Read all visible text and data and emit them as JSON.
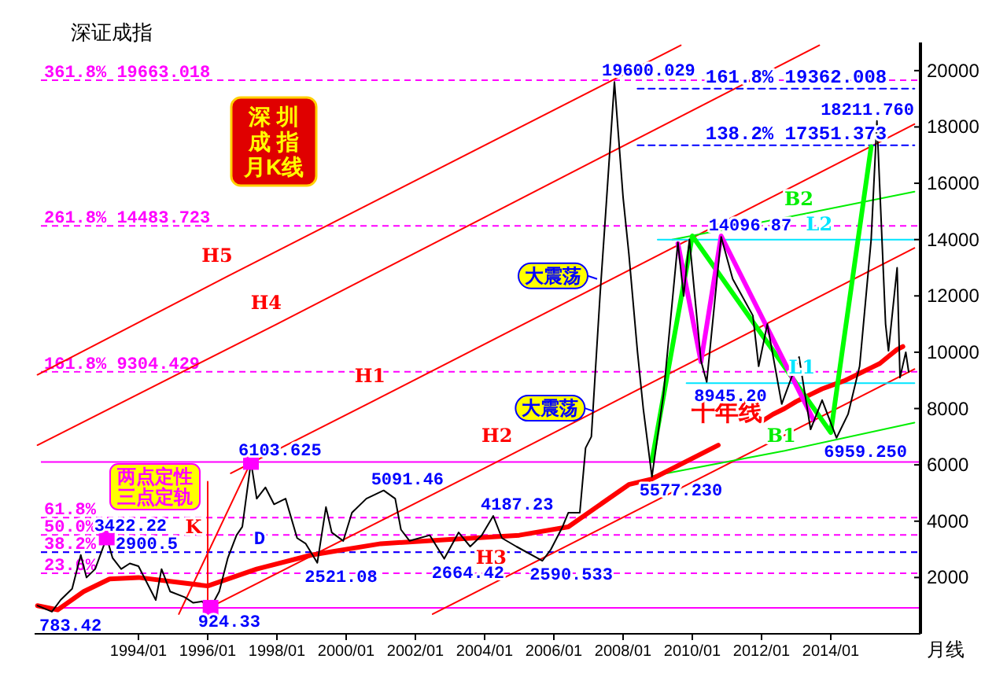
{
  "chart_data": {
    "type": "line",
    "title": "深证成指",
    "subtitle": "深圳成指月K线",
    "xlabel": "月线",
    "xlim": [
      "1991-01",
      "2016-07"
    ],
    "ylim": [
      0,
      21000
    ],
    "xticks": [
      {
        "value": "1994-01",
        "label": "1994/01"
      },
      {
        "value": "1996-01",
        "label": "1996/01"
      },
      {
        "value": "1998-01",
        "label": "1998/01"
      },
      {
        "value": "2000-01",
        "label": "2000/01"
      },
      {
        "value": "2002-01",
        "label": "2002/01"
      },
      {
        "value": "2004-01",
        "label": "2004/01"
      },
      {
        "value": "2006-01",
        "label": "2006/01"
      },
      {
        "value": "2008-01",
        "label": "2008/01"
      },
      {
        "value": "2010-01",
        "label": "2010/01"
      },
      {
        "value": "2012-01",
        "label": "2012/01"
      },
      {
        "value": "2014-01",
        "label": "2014/01"
      }
    ],
    "yticks": [
      2000,
      4000,
      6000,
      8000,
      10000,
      12000,
      14000,
      16000,
      18000,
      20000
    ],
    "ref_lines": [
      {
        "axis": "y",
        "value": 19663.018,
        "label": "361.8%  19663.018",
        "color": "#ff00ff",
        "line_style": "dashed"
      },
      {
        "axis": "y",
        "value": 14483.723,
        "label": "261.8%  14483.723",
        "color": "#ff00ff",
        "line_style": "dashed"
      },
      {
        "axis": "y",
        "value": 9304.429,
        "label": "161.8%  9304.429",
        "color": "#ff00ff",
        "line_style": "dashed"
      },
      {
        "axis": "y",
        "value": 6103.625,
        "color": "#ff00ff",
        "line_style": "solid"
      },
      {
        "axis": "y",
        "value": 4125,
        "color": "#ff00ff",
        "line_style": "dashed"
      },
      {
        "axis": "y",
        "value": 3514,
        "color": "#ff00ff",
        "line_style": "dashed"
      },
      {
        "axis": "y",
        "value": 2903,
        "color": "#ff00ff",
        "line_style": "dashed"
      },
      {
        "axis": "y",
        "value": 2900.5,
        "label": "2900.5",
        "color": "#0000ff",
        "line_style": "dashed"
      },
      {
        "axis": "y",
        "value": 2147,
        "color": "#ff00ff",
        "line_style": "dashed"
      },
      {
        "axis": "y",
        "value": 924.33,
        "color": "#ff00ff",
        "line_style": "solid"
      }
    ],
    "series": [
      {
        "type": "line",
        "name": "H5",
        "color": "#ff0000",
        "x": [
          "1991-02",
          "1996-08",
          "2009-09"
        ],
        "values": [
          9200,
          12700,
          20900
        ]
      },
      {
        "type": "line",
        "name": "H4",
        "color": "#ff0000",
        "x": [
          "1991-02",
          "1998-01",
          "2013-09"
        ],
        "values": [
          6700,
          11000,
          20900
        ]
      },
      {
        "type": "line",
        "name": "H1",
        "color": "#ff0000",
        "x": [
          "1996-09",
          "2001-01",
          "2016-06"
        ],
        "values": [
          5700,
          8400,
          18100
        ]
      },
      {
        "type": "line",
        "name": "H2",
        "color": "#ff0000",
        "x": [
          "1996-01",
          "2004-09",
          "2016-06"
        ],
        "values": [
          900,
          6300,
          13700
        ]
      },
      {
        "type": "line",
        "name": "H3",
        "color": "#ff0000",
        "x": [
          "2002-07",
          "2004-07",
          "2016-06"
        ],
        "values": [
          700,
          1950,
          9400
        ]
      },
      {
        "type": "line",
        "color": "#ff0000",
        "x": [
          "1995-03",
          "1997-04"
        ],
        "values": [
          700,
          6103.625
        ]
      },
      {
        "type": "line",
        "name": "K",
        "color": "#ff0000",
        "x": [
          "1996-01",
          "1996-01",
          "1996-01"
        ],
        "values": [
          1000,
          3800,
          5400
        ]
      },
      {
        "type": "line",
        "name": "B1",
        "color": "#00ee00",
        "x": [
          "2008-11",
          "2012-09",
          "2016-06"
        ],
        "values": [
          5600,
          6500,
          7500
        ]
      },
      {
        "type": "line",
        "name": "B2",
        "color": "#00ee00",
        "x": [
          "2009-06",
          "2013-03",
          "2016-06"
        ],
        "values": [
          14000,
          14900,
          15700
        ]
      },
      {
        "type": "line",
        "name": "L2",
        "color": "#00e5ff",
        "x": [
          "2009-01",
          "2013-09",
          "2016-06"
        ],
        "values": [
          14000,
          14000,
          14000
        ]
      },
      {
        "type": "line",
        "name": "L1",
        "color": "#00e5ff",
        "x": [
          "2009-11",
          "2013-03",
          "2016-06"
        ],
        "values": [
          8900,
          8900,
          8900
        ]
      },
      {
        "name": "161.8%  19362.008",
        "color": "#0000ff",
        "line_style": "dashed",
        "x": [
          "2008-06",
          "2013-01",
          "2016-06"
        ],
        "values": [
          19362.008,
          19362.008,
          19362.008
        ]
      },
      {
        "name": "138.2%  17351.373",
        "color": "#0000ff",
        "line_style": "dashed",
        "x": [
          "2008-06",
          "2013-01",
          "2016-06"
        ],
        "values": [
          17351.373,
          17351.373,
          17351.373
        ]
      },
      {
        "color": "#000000",
        "x": [
          "1991-02",
          "1991-07",
          "1991-10",
          "1992-02",
          "1992-05",
          "1992-07",
          "1992-10",
          "1993-02",
          "1993-04",
          "1993-07",
          "1993-10",
          "1994-01",
          "1994-04",
          "1994-07",
          "1994-09",
          "1994-12",
          "1995-05",
          "1995-08",
          "1995-11",
          "1996-02",
          "1996-05",
          "1996-08",
          "1996-11",
          "1997-01",
          "1997-04",
          "1997-06",
          "1997-09",
          "1997-12",
          "1998-04",
          "1998-08",
          "1998-11",
          "1999-03",
          "1999-06",
          "1999-08",
          "1999-12",
          "2000-03",
          "2000-08",
          "2001-02",
          "2001-06",
          "2001-08",
          "2001-11",
          "2002-06",
          "2002-11",
          "2003-04",
          "2003-08",
          "2003-12",
          "2004-04",
          "2004-07",
          "2004-12",
          "2005-09",
          "2005-12",
          "2006-04",
          "2006-06",
          "2006-10",
          "2006-12",
          "2007-02",
          "2007-05",
          "2007-07",
          "2007-10",
          "2008-01",
          "2008-03",
          "2008-06",
          "2008-08",
          "2008-11",
          "2009-03",
          "2009-08",
          "2009-10",
          "2009-12",
          "2010-04",
          "2010-06",
          "2010-11",
          "2011-03",
          "2011-10",
          "2011-12",
          "2012-03",
          "2012-08",
          "2013-02",
          "2013-06",
          "2013-10",
          "2014-03",
          "2014-07",
          "2014-11",
          "2015-03",
          "2015-05",
          "2015-08",
          "2015-09",
          "2015-12",
          "2016-01",
          "2016-03",
          "2016-04"
        ],
        "values": [
          1000,
          783.42,
          1200,
          1600,
          2800,
          2000,
          2300,
          3422.22,
          2700,
          2300,
          2500,
          2400,
          1800,
          1200,
          2300,
          1500,
          1300,
          1100,
          1150,
          924.33,
          1500,
          2700,
          3500,
          3800,
          6103.625,
          4800,
          5200,
          4600,
          4800,
          3400,
          3200,
          2521.08,
          4500,
          3600,
          3300,
          4300,
          4800,
          5091.46,
          4800,
          3700,
          3300,
          3500,
          2664.42,
          3600,
          3100,
          3500,
          4187.23,
          3400,
          3100,
          2590.533,
          3000,
          3800,
          4300,
          4300,
          6600,
          7000,
          12000,
          15000,
          19600.029,
          15500,
          13500,
          10000,
          8000,
          5577.23,
          8500,
          13900,
          12000,
          14000,
          9700,
          8945.2,
          14096.87,
          12600,
          11300,
          9500,
          11000,
          8160,
          9830,
          7260,
          8300,
          6959.25,
          7800,
          9500,
          14000,
          18211.76,
          11000,
          10050,
          13000,
          9100,
          10000,
          9300
        ]
      },
      {
        "name": "十年线",
        "color": "#ff0000",
        "x": [
          "1991-02",
          "1991-09",
          "1992-06",
          "1993-03",
          "1994-01",
          "1996-01",
          "1997-06",
          "1999-01",
          "2001-01",
          "2003-01",
          "2005-01",
          "2006-06",
          "2008-03",
          "2008-11",
          "2010-10",
          "2011-05",
          "2012-01",
          "2012-05",
          "2012-09",
          "2013-01",
          "2013-06",
          "2013-10",
          "2014-02",
          "2014-06",
          "2014-09",
          "2014-12",
          "2015-03",
          "2015-06",
          "2015-09",
          "2015-12",
          "2016-02"
        ],
        "values": [
          1000,
          850,
          1500,
          1950,
          2000,
          1700,
          2300,
          2800,
          3200,
          3350,
          3500,
          3800,
          5300,
          5500,
          6700,
          null,
          7540,
          7800,
          8000,
          8250,
          8500,
          8700,
          8850,
          9000,
          9150,
          9300,
          9450,
          9600,
          9850,
          10100,
          10200
        ]
      },
      {
        "color": "#00ff00",
        "x": [
          "2008-11",
          "2010-01",
          "2014-01",
          "2015-03"
        ],
        "values": [
          6150,
          14130,
          7150,
          17300
        ]
      },
      {
        "color": "#ff00ff",
        "x": [
          "2009-08",
          "2010-04",
          "2010-11",
          "2013-07"
        ],
        "values": [
          13860,
          9660,
          14130,
          7600
        ]
      },
      {
        "type": "scatter",
        "marker": "square",
        "color": "#ff00ff",
        "x": [
          "1993-02",
          "1997-04",
          "1996-02"
        ],
        "values": [
          3422.22,
          6103.625,
          924.33
        ]
      }
    ],
    "annotations": [
      "两点定性三点定轨",
      {
        "text": "61.8%",
        "x": "1991-02",
        "y": 4125
      },
      {
        "text": "50.0%",
        "x": "1991-02",
        "y": 3514
      },
      {
        "text": "38.2%",
        "x": "1991-02",
        "y": 2903
      },
      {
        "text": "23.6%",
        "x": "1991-02",
        "y": 2147
      },
      {
        "text": "大震荡",
        "x": "2007-04",
        "y": 12600
      },
      {
        "text": "大震荡",
        "x": "2007-03",
        "y": 7900
      },
      {
        "text": "D",
        "x": "1997-07",
        "y": 2900.5
      },
      {
        "text": "783.42",
        "x": "1991-07",
        "y": 783.42
      },
      {
        "text": "3422.22",
        "x": "1993-02",
        "y": 3422.22
      },
      {
        "text": "924.33",
        "x": "1996-02",
        "y": 924.33
      },
      {
        "text": "6103.625",
        "x": "1997-04",
        "y": 6103.625
      },
      {
        "text": "2521.08",
        "x": "1999-03",
        "y": 2521.08
      },
      {
        "text": "5091.46",
        "x": "2001-02",
        "y": 5091.46
      },
      {
        "text": "2664.42",
        "x": "2002-11",
        "y": 2664.42
      },
      {
        "text": "4187.23",
        "x": "2004-04",
        "y": 4187.23
      },
      {
        "text": "2590.533",
        "x": "2005-09",
        "y": 2590.533
      },
      {
        "text": "19600.029",
        "x": "2007-10",
        "y": 19600.029
      },
      {
        "text": "5577.230",
        "x": "2008-11",
        "y": 5577.23
      },
      {
        "text": "14096.87",
        "x": "2010-11",
        "y": 14096.87
      },
      {
        "text": "8945.20",
        "x": "2010-06",
        "y": 8945.2
      },
      {
        "text": "6959.250",
        "x": "2014-03",
        "y": 6959.25
      },
      {
        "text": "18211.760",
        "x": "2015-05",
        "y": 18211.76
      }
    ]
  }
}
